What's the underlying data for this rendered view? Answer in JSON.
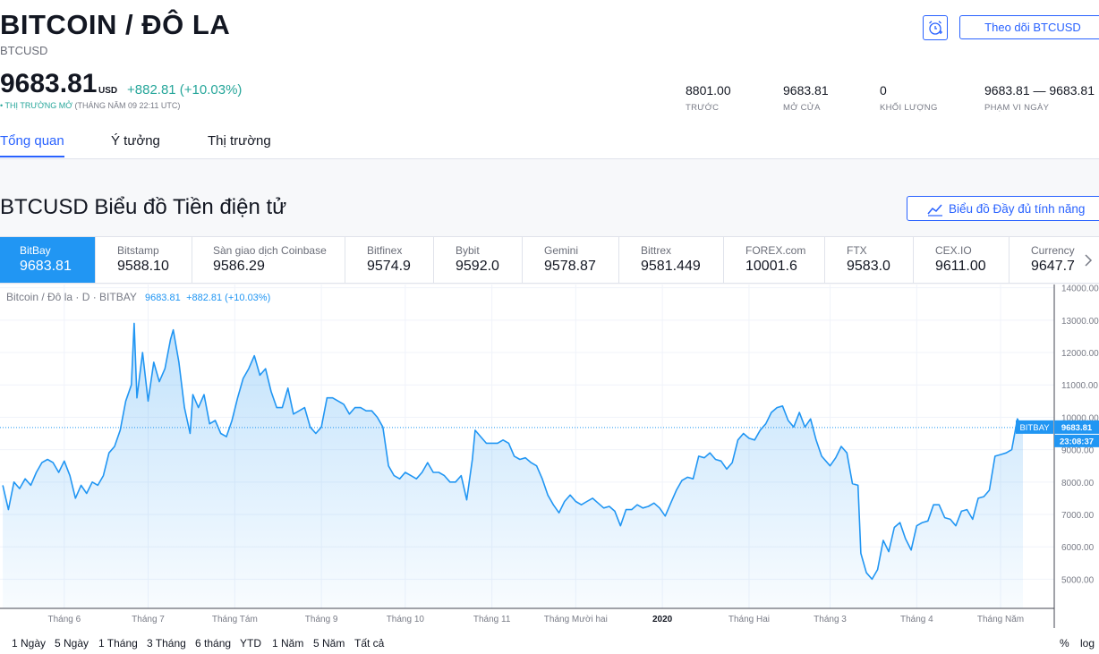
{
  "header": {
    "title": "BITCOIN / ĐÔ LA",
    "ticker": "BTCUSD",
    "follow_label": "Theo dõi BTCUSD",
    "alert_icon": "alarm-clock-icon"
  },
  "quote": {
    "price": "9683.81",
    "unit": "USD",
    "change": "+882.81 (+10.03%)",
    "market_status": "• THỊ TRƯỜNG MỞ",
    "market_time": "(THÁNG NĂM 09 22:11 UTC)"
  },
  "stats": [
    {
      "value": "8801.00",
      "label": "TRƯỚC"
    },
    {
      "value": "9683.81",
      "label": "MỞ CỬA"
    },
    {
      "value": "0",
      "label": "KHỐI LƯỢNG"
    },
    {
      "value": "9683.81 — 9683.81",
      "label": "PHẠM VI NGÀY"
    }
  ],
  "tabs": [
    {
      "label": "Tổng quan",
      "active": true
    },
    {
      "label": "Ý tưởng",
      "active": false
    },
    {
      "label": "Thị trường",
      "active": false
    }
  ],
  "chart_section": {
    "heading": "BTCUSD Biểu đồ Tiền điện tử",
    "full_chart_label": "Biểu đồ Đầy đủ tính năng"
  },
  "exchanges": [
    {
      "name": "BitBay",
      "price": "9683.81",
      "active": true
    },
    {
      "name": "Bitstamp",
      "price": "9588.10"
    },
    {
      "name": "Sàn giao dịch Coinbase",
      "price": "9586.29"
    },
    {
      "name": "Bitfinex",
      "price": "9574.9"
    },
    {
      "name": "Bybit",
      "price": "9592.0"
    },
    {
      "name": "Gemini",
      "price": "9578.87"
    },
    {
      "name": "Bittrex",
      "price": "9581.449"
    },
    {
      "name": "FOREX.com",
      "price": "10001.6"
    },
    {
      "name": "FTX",
      "price": "9583.0"
    },
    {
      "name": "CEX.IO",
      "price": "9611.00"
    },
    {
      "name": "Currency",
      "price": "9647.7"
    }
  ],
  "legend": {
    "symbol": "Bitcoin / Đô la · D · BITBAY",
    "value": "9683.81",
    "change": "+882.81 (+10.03%)"
  },
  "time_ranges": [
    "1 Ngày",
    "5 Ngày",
    "1 Tháng",
    "3 Tháng",
    "6 tháng",
    "YTD",
    "1 Năm",
    "5 Năm",
    "Tất cả"
  ],
  "scale_options": [
    "%",
    "log"
  ],
  "colors": {
    "accent": "#2962ff",
    "line": "#2196f3",
    "positive": "#26a69a"
  },
  "chart_data": {
    "type": "area",
    "y_ticks": [
      14000,
      13000,
      12000,
      11000,
      10000,
      9000,
      8000,
      7000,
      6000,
      5000
    ],
    "y_tick_labels": [
      "14000.00",
      "13000.00",
      "12000.00",
      "11000.00",
      "10000.00",
      "9000.00",
      "8000.00",
      "7000.00",
      "6000.00",
      "5000.00"
    ],
    "ylim": [
      4100,
      14100
    ],
    "x_tick_labels": [
      "Tháng 6",
      "Tháng 7",
      "Tháng Tám",
      "Tháng 9",
      "Tháng 10",
      "Tháng 11",
      "Tháng Mười hai",
      "2020",
      "Tháng Hai",
      "Tháng 3",
      "Tháng 4",
      "Tháng Năm"
    ],
    "x_tick_dates": [
      "2019-06-01",
      "2019-07-01",
      "2019-08-01",
      "2019-09-01",
      "2019-10-01",
      "2019-11-01",
      "2019-12-01",
      "2020-01-01",
      "2020-02-01",
      "2020-03-01",
      "2020-04-01",
      "2020-05-01"
    ],
    "last_value_tag": "BITBAY",
    "last_value": "9683.81",
    "countdown": "23:08:37",
    "series": [
      {
        "points": [
          [
            "2019-05-10",
            7900
          ],
          [
            "2019-05-12",
            7150
          ],
          [
            "2019-05-14",
            8000
          ],
          [
            "2019-05-16",
            7800
          ],
          [
            "2019-05-18",
            8100
          ],
          [
            "2019-05-20",
            7900
          ],
          [
            "2019-05-22",
            8300
          ],
          [
            "2019-05-24",
            8600
          ],
          [
            "2019-05-26",
            8700
          ],
          [
            "2019-05-28",
            8600
          ],
          [
            "2019-05-30",
            8300
          ],
          [
            "2019-06-01",
            8650
          ],
          [
            "2019-06-03",
            8200
          ],
          [
            "2019-06-05",
            7500
          ],
          [
            "2019-06-07",
            7900
          ],
          [
            "2019-06-09",
            7650
          ],
          [
            "2019-06-11",
            8000
          ],
          [
            "2019-06-13",
            7900
          ],
          [
            "2019-06-15",
            8200
          ],
          [
            "2019-06-17",
            8900
          ],
          [
            "2019-06-19",
            9100
          ],
          [
            "2019-06-21",
            9600
          ],
          [
            "2019-06-23",
            10500
          ],
          [
            "2019-06-25",
            11000
          ],
          [
            "2019-06-26",
            12900
          ],
          [
            "2019-06-27",
            10600
          ],
          [
            "2019-06-29",
            12000
          ],
          [
            "2019-07-01",
            10500
          ],
          [
            "2019-07-03",
            11700
          ],
          [
            "2019-07-05",
            11100
          ],
          [
            "2019-07-07",
            11500
          ],
          [
            "2019-07-09",
            12400
          ],
          [
            "2019-07-10",
            12700
          ],
          [
            "2019-07-12",
            11700
          ],
          [
            "2019-07-14",
            10300
          ],
          [
            "2019-07-16",
            9500
          ],
          [
            "2019-07-17",
            10700
          ],
          [
            "2019-07-19",
            10300
          ],
          [
            "2019-07-21",
            10700
          ],
          [
            "2019-07-23",
            9800
          ],
          [
            "2019-07-25",
            9900
          ],
          [
            "2019-07-27",
            9500
          ],
          [
            "2019-07-29",
            9400
          ],
          [
            "2019-07-31",
            9900
          ],
          [
            "2019-08-02",
            10600
          ],
          [
            "2019-08-04",
            11200
          ],
          [
            "2019-08-06",
            11500
          ],
          [
            "2019-08-08",
            11900
          ],
          [
            "2019-08-10",
            11300
          ],
          [
            "2019-08-12",
            11500
          ],
          [
            "2019-08-14",
            10800
          ],
          [
            "2019-08-16",
            10300
          ],
          [
            "2019-08-18",
            10300
          ],
          [
            "2019-08-20",
            10900
          ],
          [
            "2019-08-22",
            10100
          ],
          [
            "2019-08-24",
            10200
          ],
          [
            "2019-08-26",
            10300
          ],
          [
            "2019-08-28",
            9700
          ],
          [
            "2019-08-30",
            9500
          ],
          [
            "2019-09-01",
            9700
          ],
          [
            "2019-09-03",
            10600
          ],
          [
            "2019-09-05",
            10600
          ],
          [
            "2019-09-07",
            10500
          ],
          [
            "2019-09-09",
            10400
          ],
          [
            "2019-09-11",
            10100
          ],
          [
            "2019-09-13",
            10300
          ],
          [
            "2019-09-15",
            10300
          ],
          [
            "2019-09-17",
            10200
          ],
          [
            "2019-09-19",
            10200
          ],
          [
            "2019-09-21",
            10000
          ],
          [
            "2019-09-23",
            9700
          ],
          [
            "2019-09-25",
            8500
          ],
          [
            "2019-09-27",
            8200
          ],
          [
            "2019-09-29",
            8100
          ],
          [
            "2019-10-01",
            8300
          ],
          [
            "2019-10-03",
            8200
          ],
          [
            "2019-10-05",
            8100
          ],
          [
            "2019-10-07",
            8300
          ],
          [
            "2019-10-09",
            8600
          ],
          [
            "2019-10-11",
            8300
          ],
          [
            "2019-10-13",
            8300
          ],
          [
            "2019-10-15",
            8200
          ],
          [
            "2019-10-17",
            8000
          ],
          [
            "2019-10-19",
            8000
          ],
          [
            "2019-10-21",
            8200
          ],
          [
            "2019-10-23",
            7450
          ],
          [
            "2019-10-25",
            8700
          ],
          [
            "2019-10-26",
            9600
          ],
          [
            "2019-10-28",
            9400
          ],
          [
            "2019-10-30",
            9200
          ],
          [
            "2019-11-01",
            9200
          ],
          [
            "2019-11-03",
            9200
          ],
          [
            "2019-11-05",
            9300
          ],
          [
            "2019-11-07",
            9200
          ],
          [
            "2019-11-09",
            8800
          ],
          [
            "2019-11-11",
            8700
          ],
          [
            "2019-11-13",
            8750
          ],
          [
            "2019-11-15",
            8600
          ],
          [
            "2019-11-17",
            8500
          ],
          [
            "2019-11-19",
            8100
          ],
          [
            "2019-11-21",
            7600
          ],
          [
            "2019-11-23",
            7300
          ],
          [
            "2019-11-25",
            7050
          ],
          [
            "2019-11-27",
            7400
          ],
          [
            "2019-11-29",
            7600
          ],
          [
            "2019-12-01",
            7400
          ],
          [
            "2019-12-03",
            7300
          ],
          [
            "2019-12-05",
            7400
          ],
          [
            "2019-12-07",
            7500
          ],
          [
            "2019-12-09",
            7350
          ],
          [
            "2019-12-11",
            7200
          ],
          [
            "2019-12-13",
            7250
          ],
          [
            "2019-12-15",
            7100
          ],
          [
            "2019-12-17",
            6650
          ],
          [
            "2019-12-19",
            7150
          ],
          [
            "2019-12-21",
            7150
          ],
          [
            "2019-12-23",
            7300
          ],
          [
            "2019-12-25",
            7200
          ],
          [
            "2019-12-27",
            7250
          ],
          [
            "2019-12-29",
            7350
          ],
          [
            "2019-12-31",
            7200
          ],
          [
            "2020-01-02",
            6950
          ],
          [
            "2020-01-04",
            7350
          ],
          [
            "2020-01-06",
            7750
          ],
          [
            "2020-01-08",
            8050
          ],
          [
            "2020-01-10",
            8150
          ],
          [
            "2020-01-12",
            8100
          ],
          [
            "2020-01-14",
            8800
          ],
          [
            "2020-01-16",
            8750
          ],
          [
            "2020-01-18",
            8900
          ],
          [
            "2020-01-20",
            8700
          ],
          [
            "2020-01-22",
            8650
          ],
          [
            "2020-01-24",
            8400
          ],
          [
            "2020-01-26",
            8600
          ],
          [
            "2020-01-28",
            9300
          ],
          [
            "2020-01-30",
            9500
          ],
          [
            "2020-02-01",
            9350
          ],
          [
            "2020-02-03",
            9300
          ],
          [
            "2020-02-05",
            9600
          ],
          [
            "2020-02-07",
            9800
          ],
          [
            "2020-02-09",
            10150
          ],
          [
            "2020-02-11",
            10300
          ],
          [
            "2020-02-13",
            10350
          ],
          [
            "2020-02-15",
            9900
          ],
          [
            "2020-02-17",
            9700
          ],
          [
            "2020-02-19",
            10150
          ],
          [
            "2020-02-21",
            9700
          ],
          [
            "2020-02-23",
            9950
          ],
          [
            "2020-02-25",
            9300
          ],
          [
            "2020-02-27",
            8800
          ],
          [
            "2020-03-01",
            8500
          ],
          [
            "2020-03-03",
            8750
          ],
          [
            "2020-03-05",
            9100
          ],
          [
            "2020-03-07",
            8900
          ],
          [
            "2020-03-09",
            7950
          ],
          [
            "2020-03-11",
            7900
          ],
          [
            "2020-03-12",
            5800
          ],
          [
            "2020-03-14",
            5200
          ],
          [
            "2020-03-16",
            5000
          ],
          [
            "2020-03-18",
            5300
          ],
          [
            "2020-03-20",
            6200
          ],
          [
            "2020-03-22",
            5850
          ],
          [
            "2020-03-24",
            6600
          ],
          [
            "2020-03-26",
            6750
          ],
          [
            "2020-03-28",
            6250
          ],
          [
            "2020-03-30",
            5900
          ],
          [
            "2020-04-01",
            6650
          ],
          [
            "2020-04-03",
            6750
          ],
          [
            "2020-04-05",
            6800
          ],
          [
            "2020-04-07",
            7300
          ],
          [
            "2020-04-09",
            7300
          ],
          [
            "2020-04-11",
            6900
          ],
          [
            "2020-04-13",
            6850
          ],
          [
            "2020-04-15",
            6650
          ],
          [
            "2020-04-17",
            7100
          ],
          [
            "2020-04-19",
            7150
          ],
          [
            "2020-04-21",
            6850
          ],
          [
            "2020-04-23",
            7500
          ],
          [
            "2020-04-25",
            7550
          ],
          [
            "2020-04-27",
            7750
          ],
          [
            "2020-04-29",
            8800
          ],
          [
            "2020-05-01",
            8850
          ],
          [
            "2020-05-03",
            8900
          ],
          [
            "2020-05-05",
            9000
          ],
          [
            "2020-05-07",
            9950
          ],
          [
            "2020-05-08",
            9800
          ],
          [
            "2020-05-09",
            9684
          ]
        ]
      }
    ]
  }
}
